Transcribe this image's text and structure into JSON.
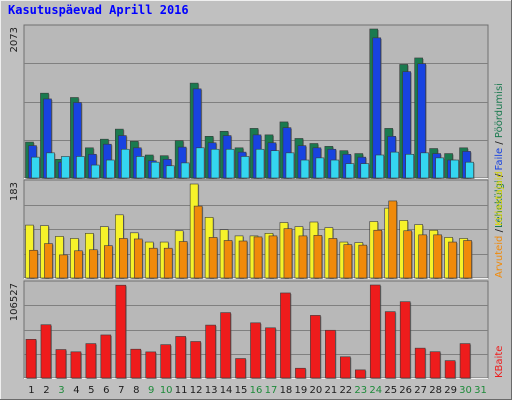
{
  "title": "Kasutuspäevad Aprill 2016",
  "colors": {
    "background": "#c0c0c0",
    "panel": "#b8b8b8",
    "grid": "#808080",
    "visits": "#1a7a4f",
    "pages": "#1843e0",
    "files": "#34d6f0",
    "hits": "#f6f22a",
    "sites": "#f08a0a",
    "kbytes": "#ee1c1c",
    "weekday_label": "#1c1c1c",
    "weekend_label": "#1e8a3a"
  },
  "chart_data": [
    {
      "type": "bar",
      "title": "Kasutuspäevad Aprill 2016",
      "categories": [
        "1",
        "2",
        "3",
        "4",
        "5",
        "6",
        "7",
        "8",
        "9",
        "10",
        "11",
        "12",
        "13",
        "14",
        "15",
        "16",
        "17",
        "18",
        "19",
        "20",
        "21",
        "22",
        "23",
        "24",
        "25",
        "26",
        "27",
        "28",
        "29",
        "30",
        "31"
      ],
      "weekend_days": [
        "3",
        "9",
        "10",
        "16",
        "17",
        "23",
        "24",
        "30",
        "31"
      ],
      "y_max_label": "2073",
      "ylim": [
        0,
        2073
      ],
      "grid": true,
      "legend_text": [
        "Pöördumisi",
        "Faile",
        "Lehekülgi"
      ],
      "series": [
        {
          "name": "Pöördumisi",
          "values": [
            500,
            1180,
            260,
            1120,
            420,
            540,
            680,
            510,
            320,
            310,
            520,
            1320,
            580,
            650,
            420,
            690,
            600,
            780,
            550,
            480,
            440,
            380,
            340,
            2073,
            690,
            1580,
            1670,
            410,
            340,
            420,
            0
          ]
        },
        {
          "name": "Faile",
          "values": [
            450,
            1100,
            220,
            1050,
            330,
            470,
            590,
            420,
            240,
            260,
            430,
            1240,
            490,
            590,
            360,
            600,
            490,
            700,
            450,
            420,
            400,
            330,
            290,
            1950,
            580,
            1480,
            1590,
            340,
            250,
            370,
            0
          ]
        },
        {
          "name": "Lehekülgi",
          "values": [
            290,
            350,
            300,
            300,
            180,
            250,
            400,
            300,
            220,
            170,
            210,
            420,
            400,
            400,
            300,
            400,
            380,
            350,
            250,
            280,
            250,
            200,
            200,
            320,
            360,
            330,
            350,
            280,
            250,
            220,
            0
          ]
        }
      ]
    },
    {
      "type": "bar",
      "y_max_label": "183",
      "ylim": [
        0,
        183
      ],
      "grid": true,
      "legend_text": [
        "Külastajaid",
        "Arvuteid"
      ],
      "series": [
        {
          "name": "Külastajaid",
          "values": [
            103,
            102,
            81,
            77,
            87,
            100,
            123,
            88,
            70,
            70,
            92,
            183,
            118,
            94,
            82,
            82,
            87,
            108,
            100,
            109,
            98,
            70,
            69,
            110,
            136,
            112,
            104,
            93,
            79,
            77,
            0
          ]
        },
        {
          "name": "Arvuteid",
          "values": [
            54,
            67,
            45,
            53,
            55,
            63,
            77,
            76,
            58,
            58,
            71,
            140,
            79,
            73,
            72,
            80,
            82,
            96,
            82,
            83,
            77,
            65,
            64,
            93,
            150,
            92,
            84,
            84,
            70,
            73,
            0
          ]
        }
      ]
    },
    {
      "type": "bar",
      "y_max_label": "106527",
      "ylim": [
        0,
        106527
      ],
      "grid": true,
      "legend_text": [
        "KBaite"
      ],
      "series": [
        {
          "name": "KBaite",
          "values": [
            44300,
            61000,
            32600,
            30000,
            39400,
            49300,
            106300,
            33000,
            29900,
            38200,
            47600,
            41800,
            60600,
            74900,
            22300,
            63200,
            57500,
            97400,
            11200,
            71700,
            54700,
            24300,
            9300,
            106527,
            76000,
            87400,
            34200,
            30100,
            19900,
            39400,
            0
          ]
        }
      ]
    }
  ]
}
